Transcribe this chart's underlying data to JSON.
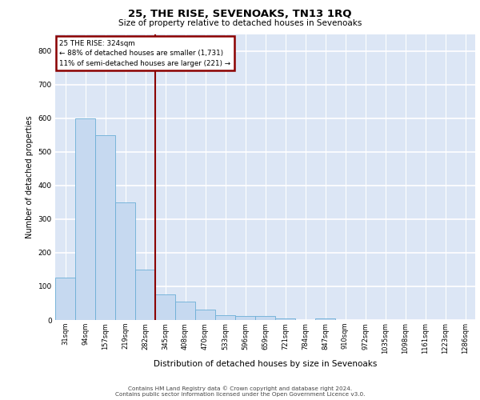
{
  "title": "25, THE RISE, SEVENOAKS, TN13 1RQ",
  "subtitle": "Size of property relative to detached houses in Sevenoaks",
  "xlabel": "Distribution of detached houses by size in Sevenoaks",
  "ylabel": "Number of detached properties",
  "categories": [
    "31sqm",
    "94sqm",
    "157sqm",
    "219sqm",
    "282sqm",
    "345sqm",
    "408sqm",
    "470sqm",
    "533sqm",
    "596sqm",
    "659sqm",
    "721sqm",
    "784sqm",
    "847sqm",
    "910sqm",
    "972sqm",
    "1035sqm",
    "1098sqm",
    "1161sqm",
    "1223sqm",
    "1286sqm"
  ],
  "values": [
    125,
    600,
    550,
    350,
    150,
    75,
    55,
    30,
    15,
    12,
    12,
    5,
    0,
    5,
    0,
    0,
    0,
    0,
    0,
    0,
    0
  ],
  "bar_color": "#c6d9f0",
  "bar_edge_color": "#6baed6",
  "vline_x": 4.5,
  "vline_color": "#8b0000",
  "annotation_box_text": "25 THE RISE: 324sqm\n← 88% of detached houses are smaller (1,731)\n11% of semi-detached houses are larger (221) →",
  "annotation_box_color": "#8b0000",
  "background_color": "#dce6f5",
  "grid_color": "#ffffff",
  "ylim": [
    0,
    850
  ],
  "yticks": [
    0,
    100,
    200,
    300,
    400,
    500,
    600,
    700,
    800
  ],
  "footer_line1": "Contains HM Land Registry data © Crown copyright and database right 2024.",
  "footer_line2": "Contains public sector information licensed under the Open Government Licence v3.0."
}
